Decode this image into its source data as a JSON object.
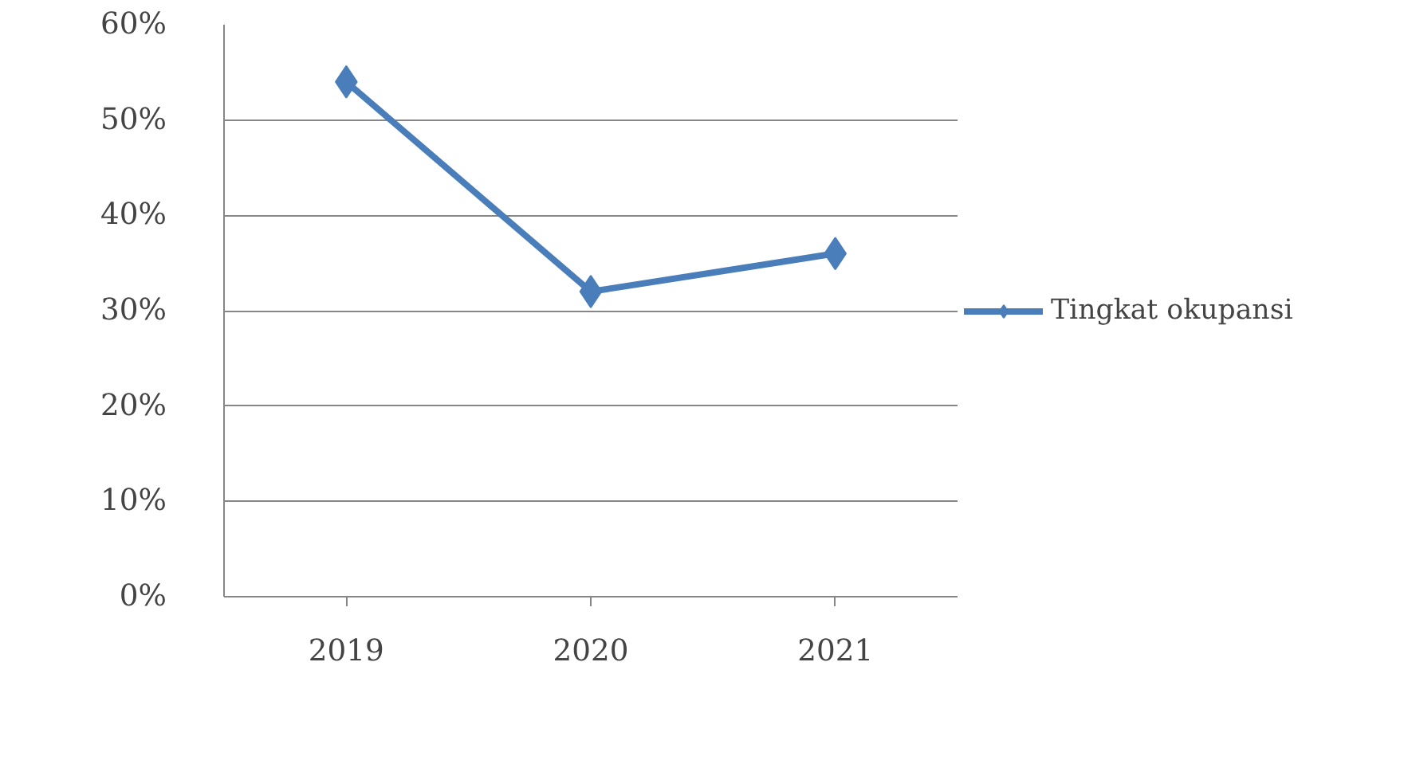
{
  "chart_data": {
    "type": "line",
    "categories": [
      "2019",
      "2020",
      "2021"
    ],
    "series": [
      {
        "name": "Tingkat okupansi",
        "color": "#4a7ebb",
        "values": [
          54,
          32,
          36
        ]
      }
    ],
    "ylim": [
      0,
      60
    ],
    "yticks": [
      {
        "value": 0,
        "label": "0%"
      },
      {
        "value": 10,
        "label": "10%"
      },
      {
        "value": 20,
        "label": "20%"
      },
      {
        "value": 30,
        "label": "30%"
      },
      {
        "value": 40,
        "label": "40%"
      },
      {
        "value": 50,
        "label": "50%"
      },
      {
        "value": 60,
        "label": "60%"
      }
    ],
    "grid": "y",
    "legend": "right",
    "marker": "diamond",
    "line_style": "solid"
  }
}
